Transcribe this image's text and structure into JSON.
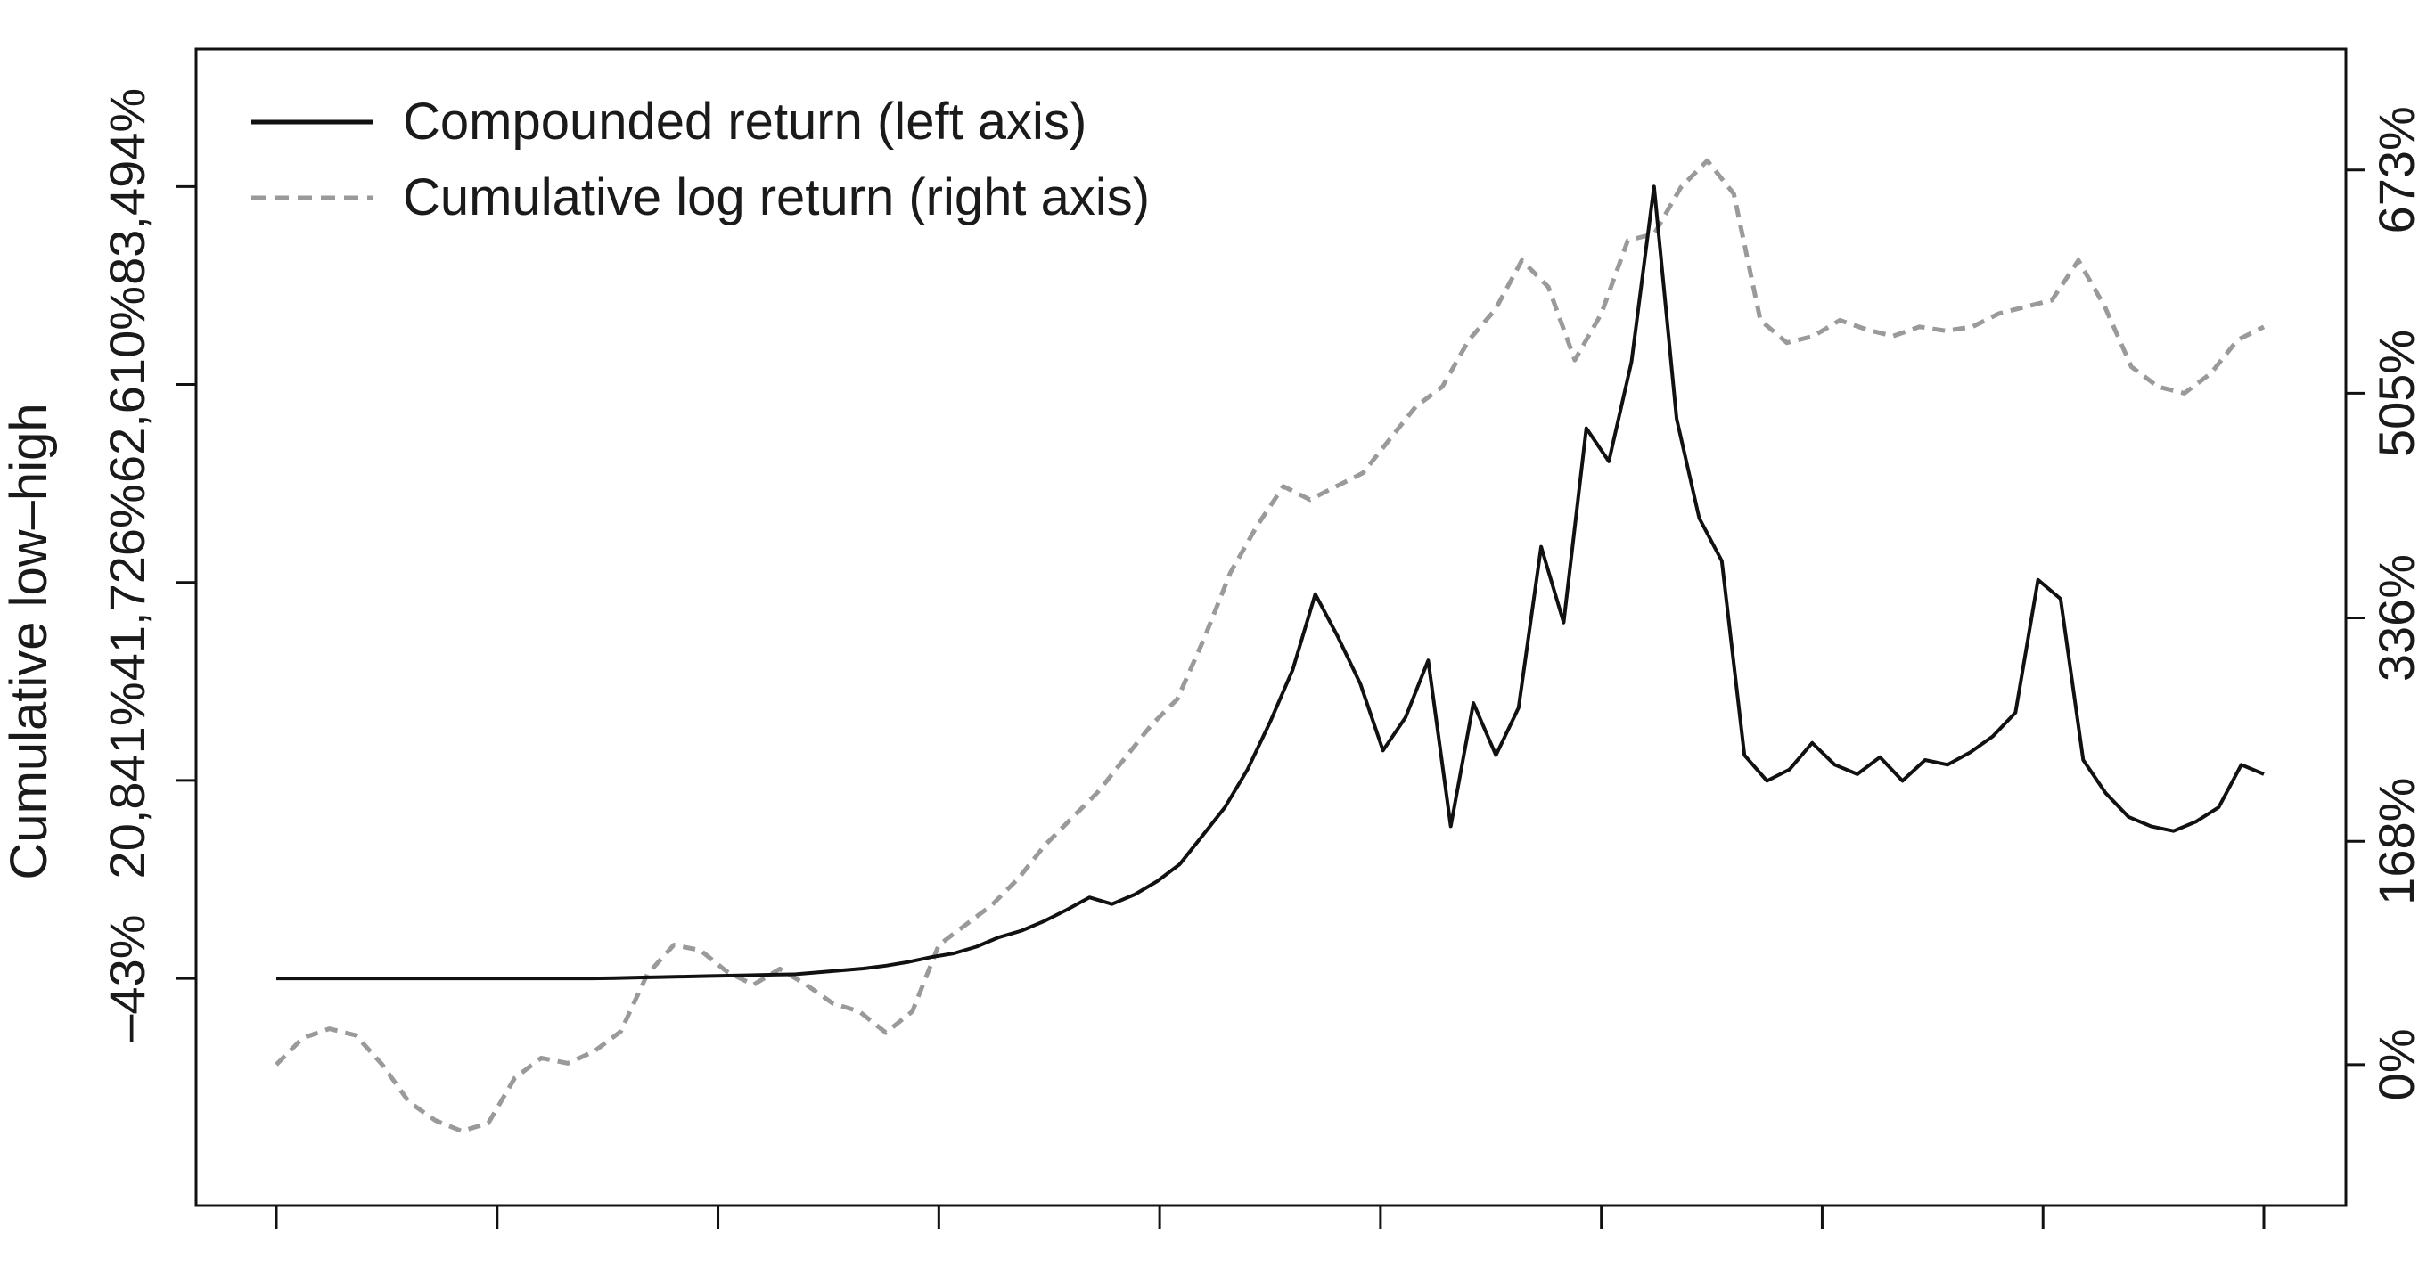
{
  "chart_data": {
    "type": "line",
    "ylabel": "Cumulative low–high",
    "left_axis_ticks": [
      "–43%",
      "20,841%",
      "41,726%",
      "62,610%",
      "83,494%"
    ],
    "left_axis_values": [
      -43,
      20841,
      41726,
      62610,
      83494
    ],
    "right_axis_ticks": [
      "0%",
      "168%",
      "336%",
      "505%",
      "673%"
    ],
    "right_axis_values": [
      0,
      168,
      336,
      505,
      673
    ],
    "left_ylim": [
      -24000,
      98000
    ],
    "right_ylim": [
      -106,
      764
    ],
    "x_tick_count": 10,
    "x_tick_labels": [],
    "grid": false,
    "legend_position": "top-left",
    "series": [
      {
        "name": "Compounded return (left axis)",
        "axis": "left",
        "style": "solid",
        "color": "#111111",
        "values": [
          -43,
          -43,
          -43,
          -43,
          -43,
          -43,
          -43,
          -43,
          -43,
          -43,
          -43,
          -43,
          -43,
          -43,
          -43,
          0,
          50,
          100,
          150,
          200,
          250,
          300,
          350,
          400,
          600,
          800,
          1000,
          1300,
          1700,
          2200,
          2600,
          3300,
          4300,
          5000,
          6000,
          7200,
          8500,
          7800,
          8800,
          10200,
          12000,
          15000,
          18000,
          22000,
          27000,
          32500,
          40500,
          36000,
          31000,
          24000,
          27500,
          33500,
          16000,
          29000,
          23500,
          28500,
          45500,
          37500,
          58000,
          54500,
          65000,
          83500,
          59000,
          48500,
          44000,
          23500,
          20800,
          22000,
          24800,
          22500,
          21500,
          23300,
          20800,
          23000,
          22500,
          23800,
          25500,
          28000,
          42000,
          40000,
          23000,
          19500,
          17000,
          16000,
          15500,
          16500,
          18000,
          22500,
          21500
        ]
      },
      {
        "name": "Cumulative log return (right axis)",
        "axis": "right",
        "style": "dashed",
        "color": "#9a9a9a",
        "values": [
          0,
          20,
          27,
          22,
          0,
          -28,
          -42,
          -50,
          -44,
          -10,
          5,
          1,
          10,
          25,
          68,
          90,
          86,
          70,
          60,
          72,
          60,
          46,
          40,
          24,
          40,
          90,
          105,
          120,
          140,
          165,
          185,
          205,
          230,
          255,
          275,
          320,
          370,
          405,
          435,
          425,
          435,
          445,
          470,
          495,
          510,
          545,
          568,
          605,
          585,
          530,
          565,
          620,
          625,
          660,
          680,
          655,
          560,
          543,
          548,
          560,
          553,
          548,
          555,
          552,
          555,
          565,
          570,
          575,
          605,
          570,
          525,
          510,
          505,
          520,
          545,
          555
        ]
      }
    ]
  }
}
